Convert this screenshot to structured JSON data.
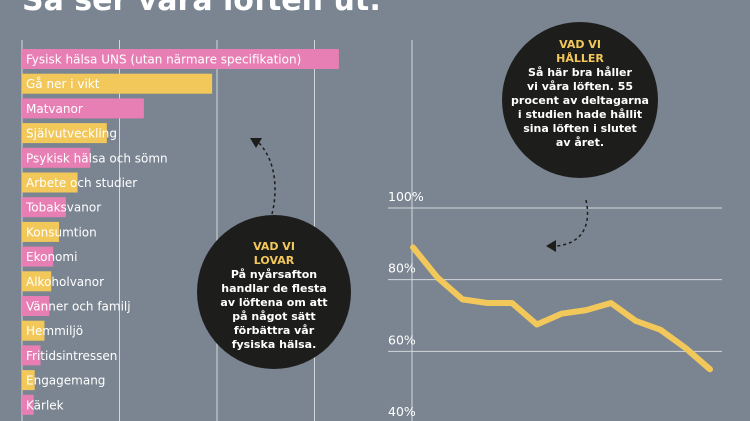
{
  "header": {
    "title": "Så ser våra löften ut:"
  },
  "colors": {
    "background": "#7a8591",
    "pink": "#e87fb4",
    "yellow": "#f3c85a",
    "bubble": "#1d1d1b",
    "grid": "#d2d7dc"
  },
  "chart_data": [
    {
      "type": "bar",
      "orientation": "horizontal",
      "categories": [
        "Fysisk hälsa UNS (utan närmare specifikation)",
        "Gå ner i vikt",
        "Matvanor",
        "Självutveckling",
        "Psykisk hälsa och sömn",
        "Arbete och studier",
        "Tobaksvanor",
        "Konsumtion",
        "Ekonomi",
        "Alkoholvanor",
        "Vänner och familj",
        "Hemmiljö",
        "Fritidsintressen",
        "Engagemang",
        "Kärlek"
      ],
      "values": [
        32.5,
        19.5,
        12.5,
        8.7,
        7.0,
        5.7,
        4.5,
        3.8,
        3.2,
        3.0,
        2.8,
        2.3,
        1.9,
        1.3,
        1.2
      ],
      "colors": [
        "pink",
        "yellow",
        "pink",
        "yellow",
        "pink",
        "yellow",
        "pink",
        "yellow",
        "pink",
        "yellow",
        "pink",
        "yellow",
        "pink",
        "yellow",
        "pink"
      ],
      "xlim": [
        0,
        40
      ],
      "grid": true,
      "axis_labels_visible": false
    },
    {
      "type": "line",
      "x": [
        1,
        2,
        3,
        4,
        5,
        6,
        7,
        8,
        9,
        10,
        11,
        12,
        13
      ],
      "y": [
        89,
        80.5,
        74.5,
        73.5,
        73.5,
        67.5,
        70.5,
        71.5,
        73.5,
        68.5,
        66,
        61,
        55
      ],
      "color": "yellow",
      "ylim": [
        40,
        100
      ],
      "yticks": [
        40,
        60,
        80,
        100
      ],
      "ytick_labels": [
        "40%",
        "60%",
        "80%",
        "100%"
      ],
      "grid": true
    }
  ],
  "bubbles": [
    {
      "heading": [
        "VAD VI",
        "LOVAR"
      ],
      "text": [
        "På nyårsafton",
        "handlar de flesta",
        "av löftena om att",
        "på något sätt",
        "förbättra vår",
        "fysiska hälsa."
      ]
    },
    {
      "heading": [
        "VAD VI",
        "HÅLLER"
      ],
      "text": [
        "Så här bra håller",
        "vi våra löften. 55",
        "procent av deltagarna",
        "i studien hade hållit",
        "sina löften i slutet",
        "av året."
      ]
    }
  ]
}
